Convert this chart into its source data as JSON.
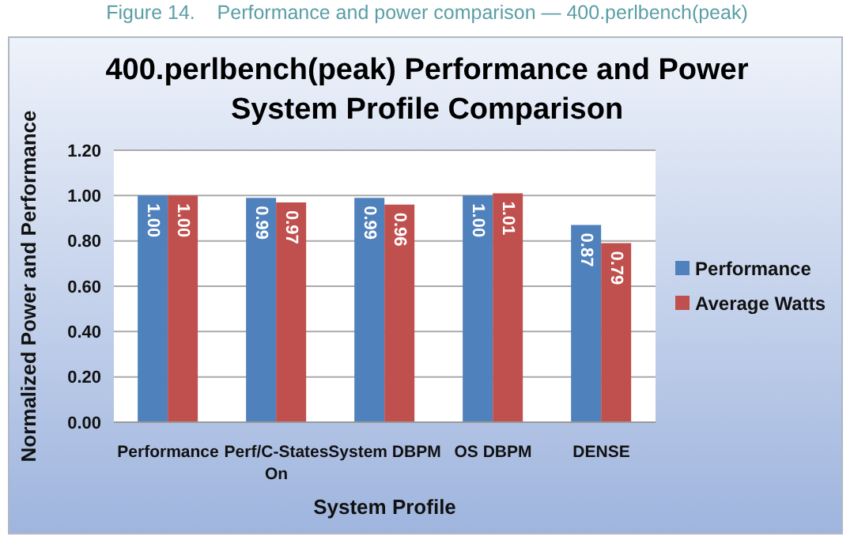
{
  "chart_data": {
    "type": "bar",
    "title": "400.perlbench(peak) Performance and Power System Profile Comparison",
    "annotations": [
      "Figure 14.    Performance and power comparison — 400.perlbench(peak)"
    ],
    "xlabel": "System Profile",
    "ylabel": "Normalized Power and Performance",
    "categories": [
      "Performance",
      "Perf/C-States On",
      "System DBPM",
      "OS DBPM",
      "DENSE"
    ],
    "series": [
      {
        "name": "Performance",
        "color": "#4f81bd",
        "values": [
          1.0,
          0.99,
          0.99,
          1.0,
          0.87
        ],
        "value_labels": [
          "1.00",
          "0.99",
          "0.99",
          "1.00",
          "0.87"
        ]
      },
      {
        "name": "Average Watts",
        "color": "#c0504d",
        "values": [
          1.0,
          0.97,
          0.96,
          1.01,
          0.79
        ],
        "value_labels": [
          "1.00",
          "0.97",
          "0.96",
          "1.01",
          "0.79"
        ]
      }
    ],
    "ylim": [
      0,
      1.2
    ],
    "yticks": [
      {
        "value": 0,
        "label": "0.00"
      },
      {
        "value": 0.2,
        "label": "0.20"
      },
      {
        "value": 0.4,
        "label": "0.40"
      },
      {
        "value": 0.6,
        "label": "0.60"
      },
      {
        "value": 0.8,
        "label": "0.80"
      },
      {
        "value": 1,
        "label": "1.00"
      },
      {
        "value": 1.2,
        "label": "1.20"
      }
    ],
    "grid": "y",
    "legend": "right"
  }
}
